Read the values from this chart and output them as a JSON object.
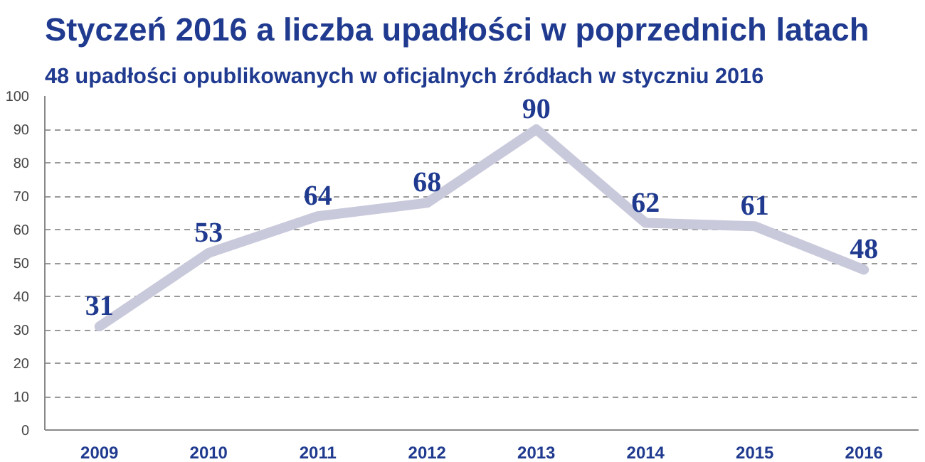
{
  "chart_data": {
    "type": "line",
    "title": "Styczeń 2016 a liczba upadłości w poprzednich latach",
    "subtitle": "48 upadłości opublikowanych w oficjalnych źródłach w styczniu 2016",
    "categories": [
      "2009",
      "2010",
      "2011",
      "2012",
      "2013",
      "2014",
      "2015",
      "2016"
    ],
    "series": [
      {
        "color": "#c9c9dc",
        "values": [
          31,
          53,
          64,
          68,
          90,
          62,
          61,
          48
        ]
      }
    ],
    "ylim": [
      0,
      100
    ],
    "yticks": [
      0,
      10,
      20,
      30,
      40,
      50,
      60,
      70,
      80,
      90,
      100
    ],
    "grid": "y",
    "data_labels": true,
    "marker": "none",
    "line_style": "solid"
  }
}
